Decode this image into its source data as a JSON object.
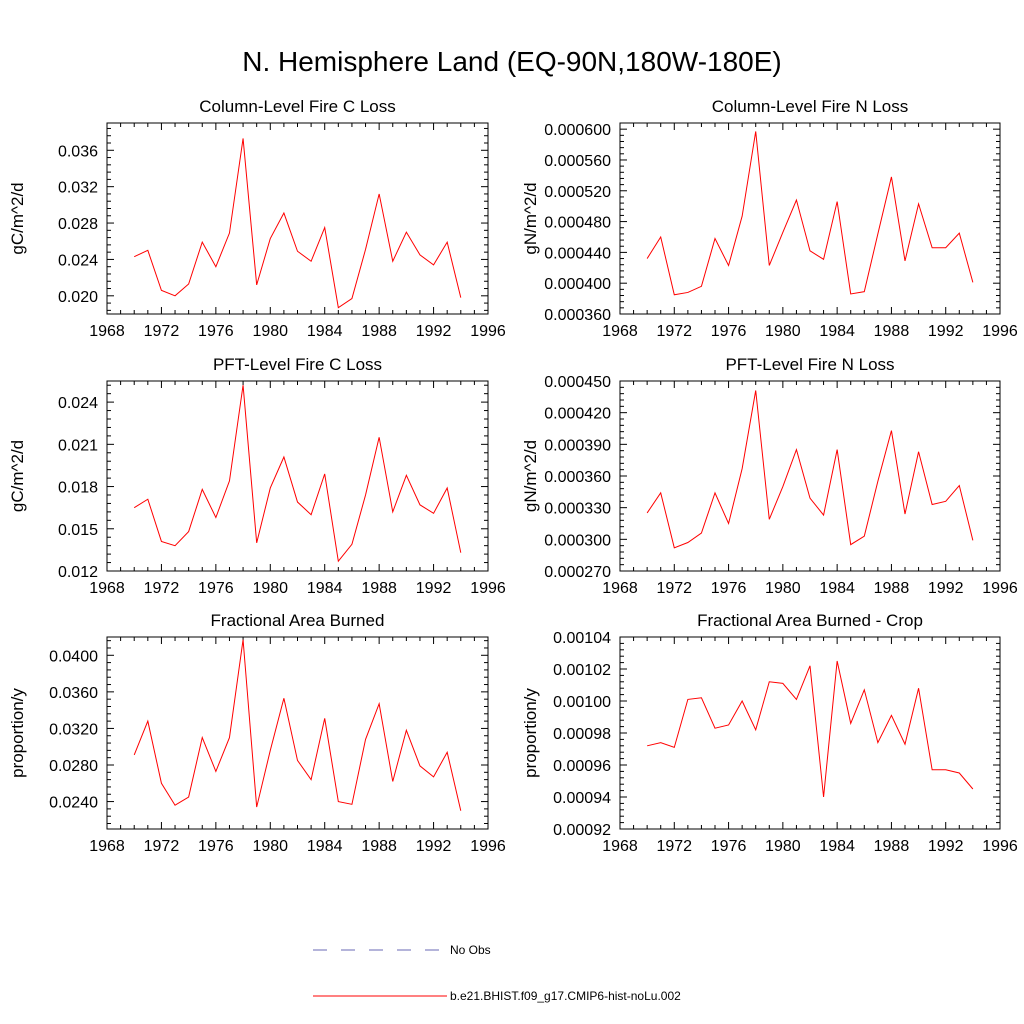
{
  "title": "N. Hemisphere Land (EQ-90N,180W-180E)",
  "legend": [
    {
      "label": "No Obs",
      "color": "#6a6ab4",
      "dash": "dashed"
    },
    {
      "label": "b.e21.BHIST.f09_g17.CMIP6-hist-noLu.002",
      "color": "#ff0000",
      "dash": "solid"
    }
  ],
  "chart_data": [
    {
      "type": "line",
      "title": "Column-Level Fire C Loss",
      "ylabel": "gC/m^2/d",
      "xlim": [
        1968,
        1996
      ],
      "ylim": [
        0.018,
        0.039
      ],
      "xticks": [
        "1968",
        "1972",
        "1976",
        "1980",
        "1984",
        "1988",
        "1992",
        "1996"
      ],
      "yticks": [
        {
          "value": 0.02,
          "label": "0.020"
        },
        {
          "value": 0.024,
          "label": "0.024"
        },
        {
          "value": 0.028,
          "label": "0.028"
        },
        {
          "value": 0.032,
          "label": "0.032"
        },
        {
          "value": 0.036,
          "label": "0.036"
        }
      ],
      "series": [
        {
          "color": "#ff0000",
          "x": [
            1970,
            1971,
            1972,
            1973,
            1974,
            1975,
            1976,
            1977,
            1978,
            1979,
            1980,
            1981,
            1982,
            1983,
            1984,
            1985,
            1986,
            1987,
            1988,
            1989,
            1990,
            1991,
            1992,
            1993,
            1994
          ],
          "y": [
            0.0243,
            0.025,
            0.0206,
            0.02,
            0.0213,
            0.0259,
            0.0232,
            0.0269,
            0.0373,
            0.0212,
            0.0263,
            0.0291,
            0.0249,
            0.0238,
            0.0275,
            0.0187,
            0.0197,
            0.0251,
            0.0312,
            0.0238,
            0.027,
            0.0245,
            0.0234,
            0.0259,
            0.0198
          ]
        }
      ]
    },
    {
      "type": "line",
      "title": "Column-Level Fire N Loss",
      "ylabel": "gN/m^2/d",
      "xlim": [
        1968,
        1996
      ],
      "ylim": [
        0.00036,
        0.000608
      ],
      "xticks": [
        "1968",
        "1972",
        "1976",
        "1980",
        "1984",
        "1988",
        "1992",
        "1996"
      ],
      "yticks": [
        {
          "value": 0.00036,
          "label": "0.000360"
        },
        {
          "value": 0.0004,
          "label": "0.000400"
        },
        {
          "value": 0.00044,
          "label": "0.000440"
        },
        {
          "value": 0.00048,
          "label": "0.000480"
        },
        {
          "value": 0.00052,
          "label": "0.000520"
        },
        {
          "value": 0.00056,
          "label": "0.000560"
        },
        {
          "value": 0.0006,
          "label": "0.000600"
        }
      ],
      "series": [
        {
          "color": "#ff0000",
          "x": [
            1970,
            1971,
            1972,
            1973,
            1974,
            1975,
            1976,
            1977,
            1978,
            1979,
            1980,
            1981,
            1982,
            1983,
            1984,
            1985,
            1986,
            1987,
            1988,
            1989,
            1990,
            1991,
            1992,
            1993,
            1994
          ],
          "y": [
            0.000432,
            0.00046,
            0.000385,
            0.000388,
            0.000396,
            0.000458,
            0.000423,
            0.000487,
            0.000597,
            0.000423,
            0.000466,
            0.000508,
            0.000442,
            0.000431,
            0.000506,
            0.000386,
            0.000389,
            0.000464,
            0.000538,
            0.000429,
            0.000503,
            0.000446,
            0.000446,
            0.000465,
            0.000401
          ]
        }
      ]
    },
    {
      "type": "line",
      "title": "PFT-Level Fire C Loss",
      "ylabel": "gC/m^2/d",
      "xlim": [
        1968,
        1996
      ],
      "ylim": [
        0.012,
        0.0255
      ],
      "xticks": [
        "1968",
        "1972",
        "1976",
        "1980",
        "1984",
        "1988",
        "1992",
        "1996"
      ],
      "yticks": [
        {
          "value": 0.012,
          "label": "0.012"
        },
        {
          "value": 0.015,
          "label": "0.015"
        },
        {
          "value": 0.018,
          "label": "0.018"
        },
        {
          "value": 0.021,
          "label": "0.021"
        },
        {
          "value": 0.024,
          "label": "0.024"
        }
      ],
      "series": [
        {
          "color": "#ff0000",
          "x": [
            1970,
            1971,
            1972,
            1973,
            1974,
            1975,
            1976,
            1977,
            1978,
            1979,
            1980,
            1981,
            1982,
            1983,
            1984,
            1985,
            1986,
            1987,
            1988,
            1989,
            1990,
            1991,
            1992,
            1993,
            1994
          ],
          "y": [
            0.0165,
            0.0171,
            0.0141,
            0.0138,
            0.0148,
            0.0178,
            0.0158,
            0.0184,
            0.0252,
            0.014,
            0.0179,
            0.0201,
            0.0169,
            0.016,
            0.0189,
            0.0127,
            0.0139,
            0.0174,
            0.0215,
            0.0162,
            0.0188,
            0.0167,
            0.0161,
            0.0179,
            0.0133
          ]
        }
      ]
    },
    {
      "type": "line",
      "title": "PFT-Level Fire N Loss",
      "ylabel": "gN/m^2/d",
      "xlim": [
        1968,
        1996
      ],
      "ylim": [
        0.00027,
        0.00045
      ],
      "xticks": [
        "1968",
        "1972",
        "1976",
        "1980",
        "1984",
        "1988",
        "1992",
        "1996"
      ],
      "yticks": [
        {
          "value": 0.00027,
          "label": "0.000270"
        },
        {
          "value": 0.0003,
          "label": "0.000300"
        },
        {
          "value": 0.00033,
          "label": "0.000330"
        },
        {
          "value": 0.00036,
          "label": "0.000360"
        },
        {
          "value": 0.00039,
          "label": "0.000390"
        },
        {
          "value": 0.00042,
          "label": "0.000420"
        },
        {
          "value": 0.00045,
          "label": "0.000450"
        }
      ],
      "series": [
        {
          "color": "#ff0000",
          "x": [
            1970,
            1971,
            1972,
            1973,
            1974,
            1975,
            1976,
            1977,
            1978,
            1979,
            1980,
            1981,
            1982,
            1983,
            1984,
            1985,
            1986,
            1987,
            1988,
            1989,
            1990,
            1991,
            1992,
            1993,
            1994
          ],
          "y": [
            0.000325,
            0.000344,
            0.000292,
            0.000297,
            0.000306,
            0.000344,
            0.000315,
            0.000367,
            0.000441,
            0.000319,
            0.00035,
            0.000385,
            0.000339,
            0.000323,
            0.000385,
            0.000295,
            0.000303,
            0.000355,
            0.000403,
            0.000324,
            0.000383,
            0.000333,
            0.000336,
            0.000351,
            0.000299
          ]
        }
      ]
    },
    {
      "type": "line",
      "title": "Fractional Area Burned",
      "ylabel": "proportion/y",
      "xlim": [
        1968,
        1996
      ],
      "ylim": [
        0.021,
        0.042
      ],
      "xticks": [
        "1968",
        "1972",
        "1976",
        "1980",
        "1984",
        "1988",
        "1992",
        "1996"
      ],
      "yticks": [
        {
          "value": 0.024,
          "label": "0.0240"
        },
        {
          "value": 0.028,
          "label": "0.0280"
        },
        {
          "value": 0.032,
          "label": "0.0320"
        },
        {
          "value": 0.036,
          "label": "0.0360"
        },
        {
          "value": 0.04,
          "label": "0.0400"
        }
      ],
      "series": [
        {
          "color": "#ff0000",
          "x": [
            1970,
            1971,
            1972,
            1973,
            1974,
            1975,
            1976,
            1977,
            1978,
            1979,
            1980,
            1981,
            1982,
            1983,
            1984,
            1985,
            1986,
            1987,
            1988,
            1989,
            1990,
            1991,
            1992,
            1993,
            1994
          ],
          "y": [
            0.0291,
            0.0328,
            0.026,
            0.0236,
            0.0245,
            0.031,
            0.0273,
            0.031,
            0.0417,
            0.0234,
            0.0296,
            0.0353,
            0.0285,
            0.0264,
            0.0331,
            0.024,
            0.0237,
            0.0308,
            0.0347,
            0.0262,
            0.0318,
            0.0279,
            0.0267,
            0.0294,
            0.023
          ]
        }
      ]
    },
    {
      "type": "line",
      "title": "Fractional Area Burned - Crop",
      "ylabel": "proportion/y",
      "xlim": [
        1968,
        1996
      ],
      "ylim": [
        0.00092,
        0.00104
      ],
      "xticks": [
        "1968",
        "1972",
        "1976",
        "1980",
        "1984",
        "1988",
        "1992",
        "1996"
      ],
      "yticks": [
        {
          "value": 0.00092,
          "label": "0.00092"
        },
        {
          "value": 0.00094,
          "label": "0.00094"
        },
        {
          "value": 0.00096,
          "label": "0.00096"
        },
        {
          "value": 0.00098,
          "label": "0.00098"
        },
        {
          "value": 0.001,
          "label": "0.00100"
        },
        {
          "value": 0.00102,
          "label": "0.00102"
        },
        {
          "value": 0.00104,
          "label": "0.00104"
        }
      ],
      "series": [
        {
          "color": "#ff0000",
          "x": [
            1970,
            1971,
            1972,
            1973,
            1974,
            1975,
            1976,
            1977,
            1978,
            1979,
            1980,
            1981,
            1982,
            1983,
            1984,
            1985,
            1986,
            1987,
            1988,
            1989,
            1990,
            1991,
            1992,
            1993,
            1994
          ],
          "y": [
            0.000972,
            0.000974,
            0.000971,
            0.001001,
            0.001002,
            0.000983,
            0.000985,
            0.001,
            0.000982,
            0.001012,
            0.001011,
            0.001001,
            0.001022,
            0.00094,
            0.001025,
            0.000986,
            0.001007,
            0.000974,
            0.000991,
            0.000973,
            0.001008,
            0.000957,
            0.000957,
            0.000955,
            0.000945
          ]
        }
      ]
    }
  ]
}
